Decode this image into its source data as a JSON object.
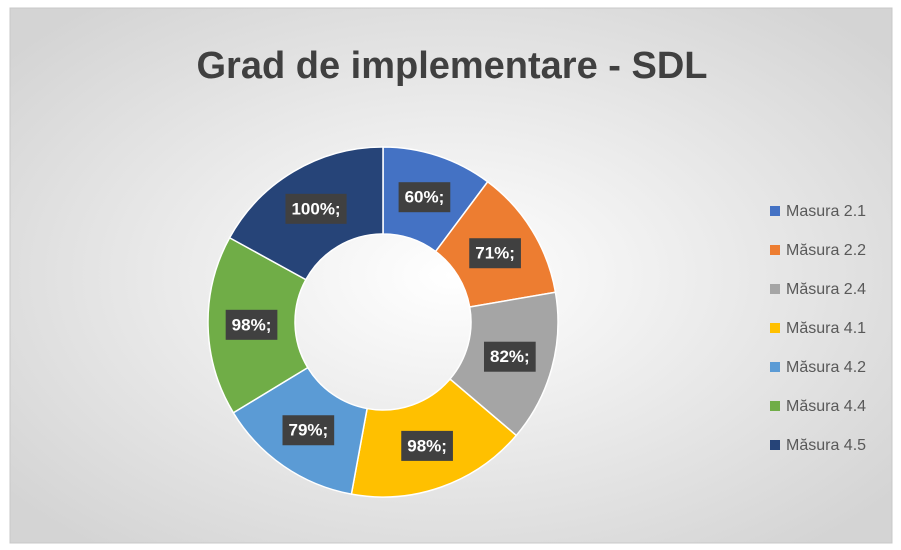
{
  "chart_data": {
    "type": "donut",
    "title": "Grad de implementare - SDL",
    "categories": [
      "Masura 2.1",
      "Măsura 2.2",
      "Măsura 2.4",
      "Măsura 4.1",
      "Măsura 4.2",
      "Măsura 4.4",
      "Măsura 4.5"
    ],
    "values": [
      60,
      71,
      82,
      98,
      79,
      98,
      100
    ],
    "value_labels": [
      "60%;",
      "71%;",
      "82%;",
      "98%;",
      "79%;",
      "98%;",
      "100%;"
    ],
    "colors": [
      "#4472c4",
      "#ed7d31",
      "#a5a5a5",
      "#ffc000",
      "#5b9bd5",
      "#70ad47",
      "#264478"
    ],
    "legend": "right"
  }
}
